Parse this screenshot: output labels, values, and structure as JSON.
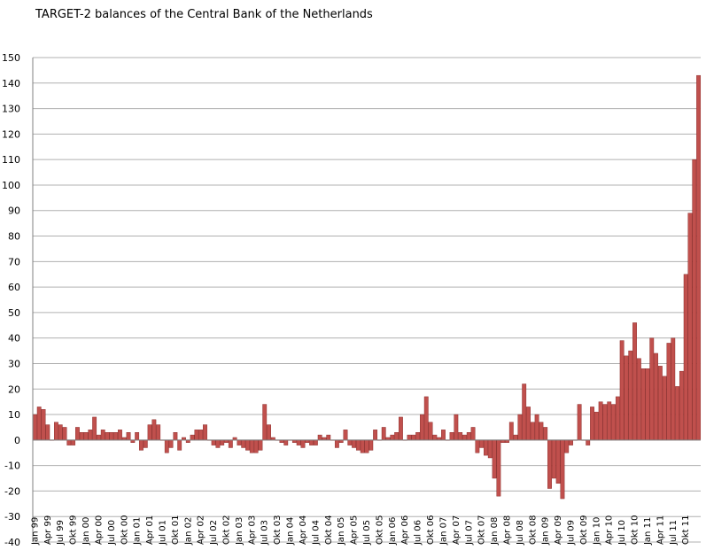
{
  "chart_data": {
    "type": "bar",
    "title": "TARGET-2 balances of the Central Bank of the Netherlands",
    "xlabel": "",
    "ylabel": "",
    "ylim": [
      -40,
      150
    ],
    "yticks": [
      150,
      140,
      130,
      120,
      110,
      100,
      90,
      80,
      70,
      60,
      50,
      40,
      30,
      20,
      10,
      0,
      -10,
      -20,
      -30,
      -40
    ],
    "grid": true,
    "legend": "none",
    "colors": {
      "bar_fill": "#c0504d",
      "bar_edge": "#7f1f1d",
      "grid": "#b0b0b0",
      "axis": "#808080"
    },
    "x_tick_labels": [
      "Jan 99",
      "Apr 99",
      "Jul 99",
      "Okt 99",
      "Jan 00",
      "Apr 00",
      "Jul 00",
      "Okt 00",
      "Jan 01",
      "Apr 01",
      "Jul 01",
      "Okt 01",
      "Jan 02",
      "Apr 02",
      "Jul 02",
      "Okt 02",
      "Jan 03",
      "Apr 03",
      "Jul 03",
      "Okt 03",
      "Jan 04",
      "Apr 04",
      "Jul 04",
      "Okt 04",
      "Jan 05",
      "Apr 05",
      "Jul 05",
      "Okt 05",
      "Jan 06",
      "Apr 06",
      "Jul 06",
      "Okt 06",
      "Jan 07",
      "Apr 07",
      "Jul 07",
      "Okt 07",
      "Jan 08",
      "Apr 08",
      "Jul 08",
      "Okt 08",
      "Jan 09",
      "Apr 09",
      "Jul 09",
      "Okt 09",
      "Jan 10",
      "Apr 10",
      "Jul 10",
      "Okt 10",
      "Jan 11",
      "Apr 11",
      "Jul 11",
      "Okt 11"
    ],
    "series": [
      {
        "values": [
          10,
          13,
          12,
          6,
          0,
          7,
          6,
          5,
          -2,
          -2,
          5,
          3,
          3,
          4,
          9,
          2,
          4,
          3,
          3,
          3,
          4,
          1,
          3,
          -1,
          3,
          -4,
          -3,
          6,
          8,
          6,
          0,
          -5,
          -3,
          3,
          -4,
          1,
          -1,
          2,
          4,
          4,
          6,
          0,
          -2,
          -3,
          -2,
          -1,
          -3,
          1,
          -2,
          -3,
          -4,
          -5,
          -5,
          -4,
          14,
          6,
          1,
          0,
          -1,
          -2,
          0,
          -1,
          -2,
          -3,
          -1,
          -2,
          -2,
          2,
          1,
          2,
          0,
          -3,
          -1,
          4,
          -2,
          -3,
          -4,
          -5,
          -5,
          -4,
          4,
          0,
          5,
          1,
          2,
          3,
          9,
          0,
          2,
          2,
          3,
          10,
          17,
          7,
          2,
          1,
          4,
          0,
          3,
          10,
          3,
          2,
          3,
          5,
          -5,
          -3,
          -6,
          -7,
          -15,
          -22,
          -1,
          -1,
          7,
          2,
          10,
          22,
          13,
          7,
          10,
          7,
          5,
          -19,
          -15,
          -17,
          -23,
          -5,
          -2,
          0,
          14,
          0,
          -2,
          13,
          11,
          15,
          14,
          15,
          14,
          17,
          39,
          33,
          35,
          46,
          32,
          28,
          28,
          40,
          34,
          29,
          25,
          38,
          40,
          21,
          27,
          65,
          89,
          110,
          143
        ]
      }
    ]
  }
}
